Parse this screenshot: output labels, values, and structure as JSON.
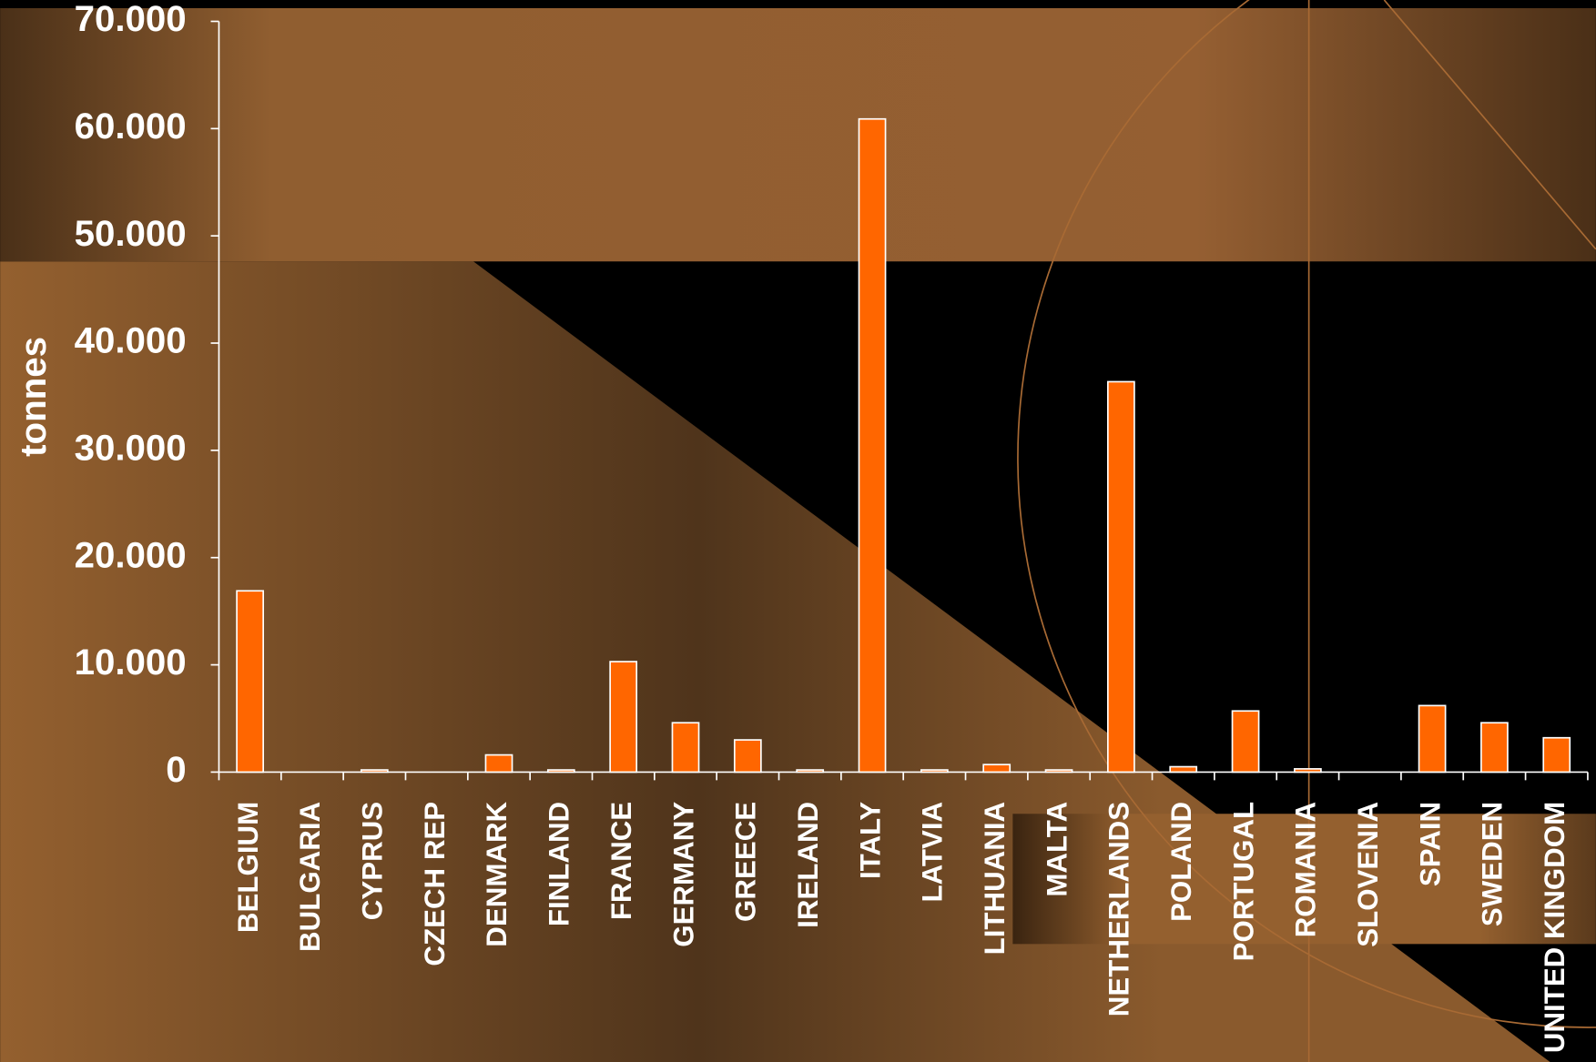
{
  "chart_data": {
    "type": "bar",
    "y_label": "tonnes",
    "categories": [
      "BELGIUM",
      "BULGARIA",
      "CYPRUS",
      "CZECH REP",
      "DENMARK",
      "FINLAND",
      "FRANCE",
      "GERMANY",
      "GREECE",
      "IRELAND",
      "ITALY",
      "LATVIA",
      "LITHUANIA",
      "MALTA",
      "NETHERLANDS",
      "POLAND",
      "PORTUGAL",
      "ROMANIA",
      "SLOVENIA",
      "SPAIN",
      "SWEDEN",
      "UNITED KINGDOM"
    ],
    "values": [
      16900,
      0,
      200,
      0,
      1600,
      200,
      10300,
      4600,
      3000,
      200,
      60900,
      200,
      700,
      200,
      36400,
      500,
      5700,
      300,
      0,
      6200,
      4600,
      3200
    ],
    "color": "#ff6600",
    "ylim": [
      0,
      70000
    ],
    "yticks": [
      0,
      {
        "value": 10000,
        "label": "10.000"
      },
      {
        "value": 20000,
        "label": "20.000"
      },
      {
        "value": 30000,
        "label": "30.000"
      },
      {
        "value": 40000,
        "label": "40.000"
      },
      {
        "value": 50000,
        "label": "50.000"
      },
      {
        "value": 60000,
        "label": "60.000"
      },
      {
        "value": 70000,
        "label": "70.000"
      }
    ],
    "grid": false
  }
}
